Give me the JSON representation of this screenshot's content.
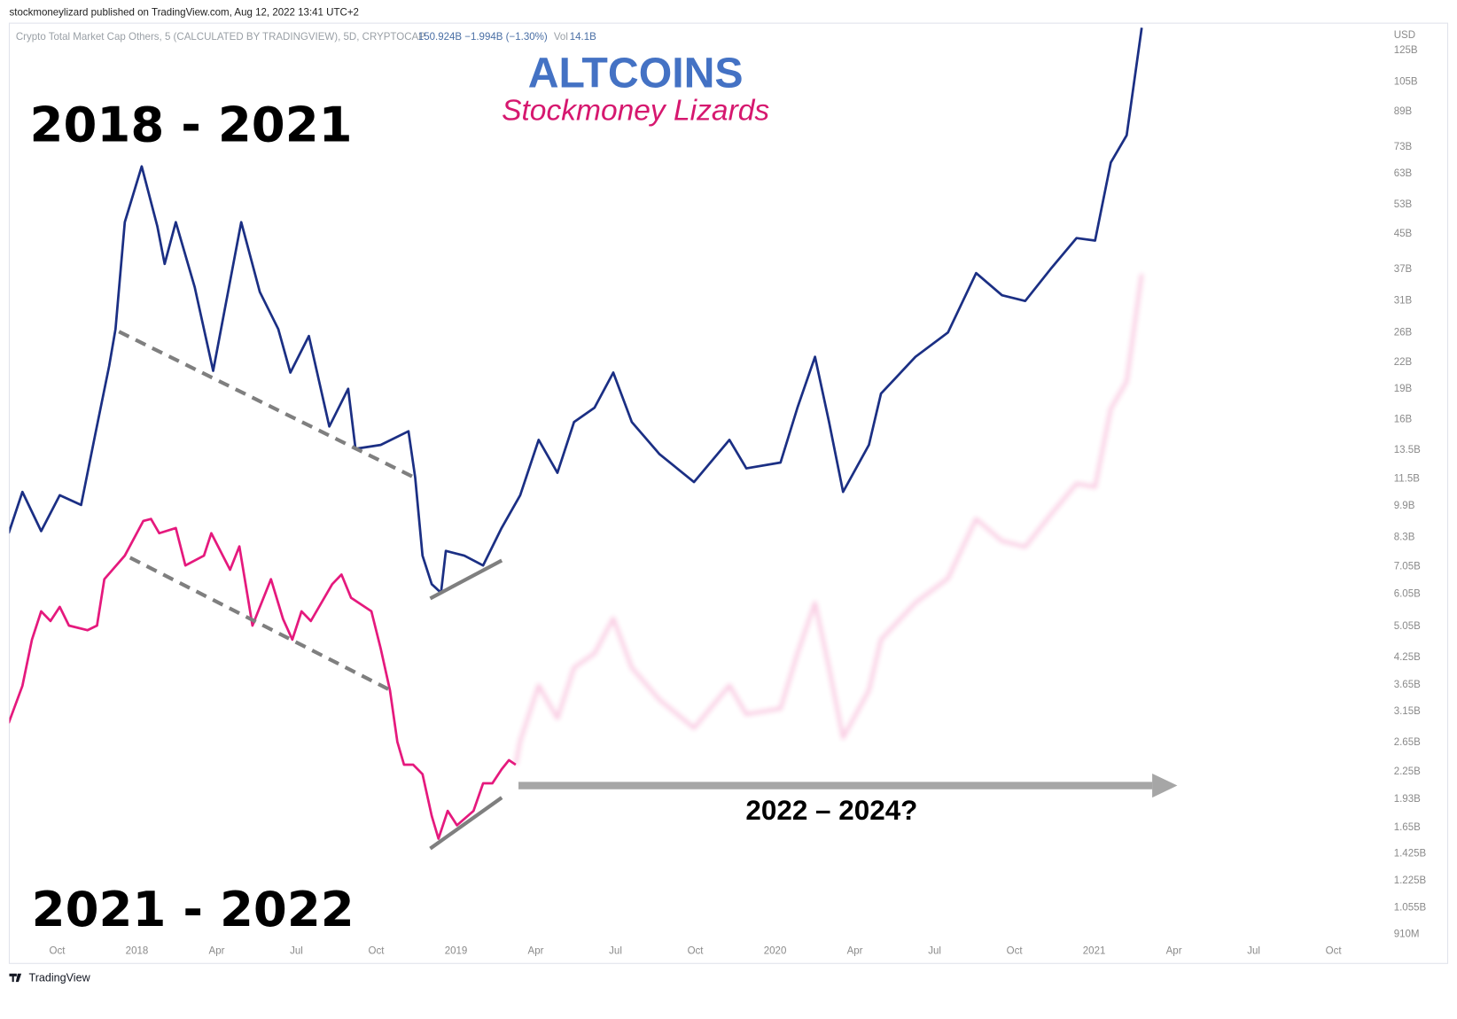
{
  "header": {
    "publisher": "stockmoneylizard published on TradingView.com, Aug 12, 2022 13:41 UTC+2",
    "symbol": "Crypto Total Market Cap Others, 5 (CALCULATED BY TRADINGVIEW), 5D, CRYPTOCAP",
    "price": "150.924B",
    "change": "−1.994B (−1.30%)",
    "volume_label": "Vol",
    "volume": "14.1B",
    "currency": "USD"
  },
  "footer": {
    "brand": "TradingView"
  },
  "chart_data": {
    "type": "line",
    "title": "ALTCOINS",
    "subtitle": "Stockmoney Lizards",
    "annotations": [
      "2018 - 2021",
      "2021 - 2022",
      "2022 – 2024?"
    ],
    "log_scale": true,
    "grid": false,
    "xlim": [
      2017.6,
      2021.91
    ],
    "ylim": [
      880000000.0,
      142000000000.0
    ],
    "xticks": [
      {
        "value": 2017.75,
        "label": "Oct"
      },
      2018,
      {
        "value": 2018.25,
        "label": "Apr"
      },
      {
        "value": 2018.5,
        "label": "Jul"
      },
      {
        "value": 2018.75,
        "label": "Oct"
      },
      2019,
      {
        "value": 2019.25,
        "label": "Apr"
      },
      {
        "value": 2019.5,
        "label": "Jul"
      },
      {
        "value": 2019.75,
        "label": "Oct"
      },
      2020,
      {
        "value": 2020.25,
        "label": "Apr"
      },
      {
        "value": 2020.5,
        "label": "Jul"
      },
      {
        "value": 2020.75,
        "label": "Oct"
      },
      2021,
      {
        "value": 2021.25,
        "label": "Apr"
      },
      {
        "value": 2021.5,
        "label": "Jul"
      },
      {
        "value": 2021.75,
        "label": "Oct"
      }
    ],
    "yticks": [
      {
        "value": 125000000000.0,
        "label": "125B"
      },
      {
        "value": 105000000000.0,
        "label": "105B"
      },
      {
        "value": 89000000000.0,
        "label": "89B"
      },
      {
        "value": 73000000000.0,
        "label": "73B"
      },
      {
        "value": 63000000000.0,
        "label": "63B"
      },
      {
        "value": 53000000000.0,
        "label": "53B"
      },
      {
        "value": 45000000000.0,
        "label": "45B"
      },
      {
        "value": 37000000000.0,
        "label": "37B"
      },
      {
        "value": 31000000000.0,
        "label": "31B"
      },
      {
        "value": 26000000000.0,
        "label": "26B"
      },
      {
        "value": 22000000000.0,
        "label": "22B"
      },
      {
        "value": 19000000000.0,
        "label": "19B"
      },
      {
        "value": 16000000000.0,
        "label": "16B"
      },
      {
        "value": 13500000000.0,
        "label": "13.5B"
      },
      {
        "value": 11500000000.0,
        "label": "11.5B"
      },
      {
        "value": 9900000000.0,
        "label": "9.9B"
      },
      {
        "value": 8300000000.0,
        "label": "8.3B"
      },
      {
        "value": 7050000000.0,
        "label": "7.05B"
      },
      {
        "value": 6050000000.0,
        "label": "6.05B"
      },
      {
        "value": 5050000000.0,
        "label": "5.05B"
      },
      {
        "value": 4250000000.0,
        "label": "4.25B"
      },
      {
        "value": 3650000000.0,
        "label": "3.65B"
      },
      {
        "value": 3150000000.0,
        "label": "3.15B"
      },
      {
        "value": 2650000000.0,
        "label": "2.65B"
      },
      {
        "value": 2250000000.0,
        "label": "2.25B"
      },
      {
        "value": 1930000000.0,
        "label": "1.93B"
      },
      {
        "value": 1650000000.0,
        "label": "1.65B"
      },
      {
        "value": 1425000000.0,
        "label": "1.425B"
      },
      {
        "value": 1225000000.0,
        "label": "1.225B"
      },
      {
        "value": 1055000000.0,
        "label": "1.055B"
      },
      {
        "value": 910000000.0,
        "label": "910M"
      }
    ],
    "series": [
      {
        "color": "#1b2f84",
        "x": [
          2017.598,
          2017.641,
          2017.7,
          2017.758,
          2017.825,
          2017.869,
          2017.913,
          2017.933,
          2017.962,
          2018.015,
          2018.064,
          2018.087,
          2018.122,
          2018.181,
          2018.239,
          2018.327,
          2018.385,
          2018.443,
          2018.481,
          2018.539,
          2018.603,
          2018.662,
          2018.685,
          2018.764,
          2018.851,
          2018.872,
          2018.895,
          2018.924,
          2018.953,
          2018.968,
          2019.026,
          2019.085,
          2019.143,
          2019.201,
          2019.259,
          2019.318,
          2019.37,
          2019.434,
          2019.493,
          2019.551,
          2019.638,
          2019.746,
          2019.857,
          2019.91,
          2020.017,
          2020.07,
          2020.125,
          2020.169,
          2020.213,
          2020.294,
          2020.332,
          2020.44,
          2020.542,
          2020.63,
          2020.711,
          2020.784,
          2020.863,
          2020.945,
          2021.003,
          2021.052,
          2021.102,
          2021.149
        ],
        "values": [
          8500000000.0,
          10700000000.0,
          8600000000.0,
          10500000000.0,
          9950000000.0,
          14700000000.0,
          21600000000.0,
          26500000000.0,
          48100000000.0,
          65600000000.0,
          47000000000.0,
          38100000000.0,
          48100000000.0,
          33500000000.0,
          21000000000.0,
          48100000000.0,
          32600000000.0,
          26500000000.0,
          20800000000.0,
          25500000000.0,
          15400000000.0,
          19000000000.0,
          13600000000.0,
          13900000000.0,
          15000000000.0,
          11600000000.0,
          7500000000.0,
          6400000000.0,
          6100000000.0,
          7700000000.0,
          7500000000.0,
          7100000000.0,
          8750000000.0,
          10500000000.0,
          14300000000.0,
          11900000000.0,
          15800000000.0,
          17100000000.0,
          20800000000.0,
          15800000000.0,
          13200000000.0,
          11300000000.0,
          14300000000.0,
          12200000000.0,
          12600000000.0,
          17100000000.0,
          22700000000.0,
          15800000000.0,
          10700000000.0,
          13900000000.0,
          18500000000.0,
          22700000000.0,
          26000000000.0,
          36200000000.0,
          32000000000.0,
          31000000000.0,
          37000000000.0,
          44000000000.0,
          43400000000.0,
          67000000000.0,
          78000000000.0,
          142000000000.0
        ]
      },
      {
        "color": "#e5197d",
        "x": [
          2017.598,
          2017.641,
          2017.671,
          2017.7,
          2017.729,
          2017.758,
          2017.787,
          2017.845,
          2017.875,
          2017.898,
          2017.962,
          2018.02,
          2018.044,
          2018.07,
          2018.122,
          2018.152,
          2018.21,
          2018.233,
          2018.292,
          2018.321,
          2018.362,
          2018.42,
          2018.458,
          2018.487,
          2018.516,
          2018.545,
          2018.612,
          2018.641,
          2018.671,
          2018.735,
          2018.764,
          2018.793,
          2018.816,
          2018.837,
          2018.866,
          2018.895,
          2018.924,
          2018.945,
          2018.974,
          2019.003,
          2019.055,
          2019.085,
          2019.114,
          2019.143,
          2019.166,
          2019.187
        ],
        "values": [
          2950000000.0,
          3630000000.0,
          4700000000.0,
          5500000000.0,
          5210000000.0,
          5640000000.0,
          5080000000.0,
          4950000000.0,
          5080000000.0,
          6580000000.0,
          7500000000.0,
          9100000000.0,
          9200000000.0,
          8500000000.0,
          8750000000.0,
          7100000000.0,
          7500000000.0,
          8500000000.0,
          6930000000.0,
          7900000000.0,
          5080000000.0,
          6580000000.0,
          5270000000.0,
          4700000000.0,
          5500000000.0,
          5210000000.0,
          6400000000.0,
          6750000000.0,
          5930000000.0,
          5500000000.0,
          4470000000.0,
          3540000000.0,
          2660000000.0,
          2340000000.0,
          2340000000.0,
          2220000000.0,
          1760000000.0,
          1550000000.0,
          1810000000.0,
          1670000000.0,
          1810000000.0,
          2110000000.0,
          2110000000.0,
          2280000000.0,
          2400000000.0,
          2340000000.0
        ]
      },
      {
        "color": "#e5197d",
        "faded": true,
        "x": [
          2019.187,
          2019.201,
          2019.259,
          2019.318,
          2019.37,
          2019.434,
          2019.493,
          2019.551,
          2019.638,
          2019.746,
          2019.857,
          2019.91,
          2020.017,
          2020.07,
          2020.125,
          2020.169,
          2020.213,
          2020.294,
          2020.332,
          2020.44,
          2020.542,
          2020.63,
          2020.711,
          2020.784,
          2020.863,
          2020.945,
          2021.003,
          2021.052,
          2021.102,
          2021.149
        ],
        "values": [
          2340000000.0,
          2670000000.0,
          3640000000.0,
          3030000000.0,
          4020000000.0,
          4350000000.0,
          5290000000.0,
          4020000000.0,
          3360000000.0,
          2870000000.0,
          3640000000.0,
          3100000000.0,
          3200000000.0,
          4350000000.0,
          5770000000.0,
          4020000000.0,
          2720000000.0,
          3540000000.0,
          4700000000.0,
          5770000000.0,
          6610000000.0,
          9200000000.0,
          8140000000.0,
          7880000000.0,
          9410000000.0,
          11200000000.0,
          11000000000.0,
          17000000000.0,
          19800000000.0,
          36000000000.0
        ]
      }
    ]
  }
}
